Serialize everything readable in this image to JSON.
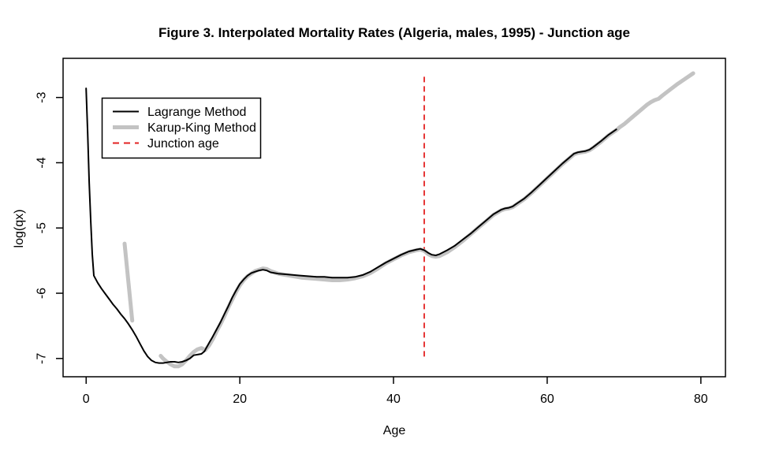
{
  "figure": {
    "title": "Figure 3. Interpolated Mortality Rates (Algeria, males, 1995) - Junction age"
  },
  "chart_data": {
    "type": "line",
    "title": "Figure 3. Interpolated Mortality Rates (Algeria, males, 1995) - Junction age",
    "xlabel": "Age",
    "ylabel": "log(qx)",
    "xlim": [
      -3.0,
      83.2
    ],
    "ylim": [
      -7.28,
      -2.4
    ],
    "x_ticks": [
      0,
      20,
      40,
      60,
      80
    ],
    "y_ticks": [
      -3,
      -4,
      -5,
      -6,
      -7
    ],
    "grid": false,
    "legend_position": "top-left",
    "junction_age": 44,
    "colors": {
      "lagrange": "#000000",
      "karup_king": "#c3c3c3",
      "junction": "#e32222",
      "axis": "#000000",
      "background": "#ffffff"
    },
    "series": [
      {
        "name": "Karup-King Method",
        "type": "line",
        "color": "#c3c3c3",
        "width": 5,
        "segments": [
          [
            [
              5,
              -5.24
            ],
            [
              6,
              -6.42
            ]
          ],
          [
            [
              9.7,
              -6.96
            ],
            [
              10,
              -7.0
            ],
            [
              10.5,
              -7.05
            ],
            [
              11,
              -7.09
            ],
            [
              11.5,
              -7.12
            ],
            [
              12,
              -7.12
            ],
            [
              12.5,
              -7.09
            ],
            [
              13,
              -7.03
            ],
            [
              13.5,
              -6.96
            ],
            [
              14,
              -6.9
            ],
            [
              14.5,
              -6.86
            ],
            [
              15,
              -6.84
            ],
            [
              15.5,
              -6.87
            ],
            [
              16,
              -6.8
            ],
            [
              16.5,
              -6.7
            ],
            [
              17,
              -6.58
            ],
            [
              17.5,
              -6.47
            ],
            [
              18,
              -6.35
            ],
            [
              18.5,
              -6.22
            ],
            [
              19,
              -6.1
            ],
            [
              19.5,
              -5.98
            ],
            [
              20,
              -5.88
            ],
            [
              20.5,
              -5.8
            ],
            [
              21,
              -5.74
            ],
            [
              21.5,
              -5.7
            ],
            [
              22,
              -5.66
            ],
            [
              22.5,
              -5.64
            ],
            [
              23,
              -5.62
            ],
            [
              23.5,
              -5.63
            ],
            [
              24,
              -5.66
            ],
            [
              24.5,
              -5.68
            ],
            [
              25,
              -5.7
            ],
            [
              26,
              -5.72
            ],
            [
              27,
              -5.74
            ],
            [
              28,
              -5.76
            ],
            [
              29,
              -5.77
            ],
            [
              30,
              -5.78
            ],
            [
              31,
              -5.79
            ],
            [
              32,
              -5.8
            ],
            [
              33,
              -5.8
            ],
            [
              34,
              -5.79
            ],
            [
              35,
              -5.77
            ],
            [
              36,
              -5.74
            ],
            [
              37,
              -5.69
            ],
            [
              38,
              -5.62
            ],
            [
              39,
              -5.54
            ],
            [
              40,
              -5.48
            ],
            [
              41,
              -5.42
            ],
            [
              42,
              -5.37
            ],
            [
              43,
              -5.34
            ],
            [
              43.5,
              -5.33
            ],
            [
              44,
              -5.35
            ],
            [
              44.5,
              -5.4
            ],
            [
              45,
              -5.43
            ],
            [
              45.5,
              -5.44
            ],
            [
              46,
              -5.43
            ],
            [
              47,
              -5.37
            ],
            [
              48,
              -5.29
            ],
            [
              49,
              -5.2
            ],
            [
              50,
              -5.1
            ],
            [
              51,
              -5.0
            ],
            [
              52,
              -4.9
            ],
            [
              53,
              -4.8
            ],
            [
              54,
              -4.73
            ],
            [
              54.5,
              -4.71
            ],
            [
              55,
              -4.7
            ],
            [
              55.5,
              -4.68
            ],
            [
              56,
              -4.64
            ],
            [
              57,
              -4.56
            ],
            [
              58,
              -4.46
            ],
            [
              59,
              -4.35
            ],
            [
              60,
              -4.24
            ],
            [
              61,
              -4.13
            ],
            [
              62,
              -4.02
            ],
            [
              63,
              -3.92
            ],
            [
              63.5,
              -3.87
            ],
            [
              64,
              -3.85
            ],
            [
              64.5,
              -3.84
            ],
            [
              65,
              -3.83
            ],
            [
              65.5,
              -3.81
            ],
            [
              66,
              -3.77
            ],
            [
              67,
              -3.68
            ],
            [
              68,
              -3.58
            ],
            [
              69,
              -3.5
            ],
            [
              69.5,
              -3.45
            ],
            [
              70,
              -3.41
            ],
            [
              71,
              -3.31
            ],
            [
              72,
              -3.21
            ],
            [
              73,
              -3.11
            ],
            [
              73.5,
              -3.07
            ],
            [
              74,
              -3.04
            ],
            [
              74.5,
              -3.02
            ],
            [
              75,
              -2.97
            ],
            [
              76,
              -2.88
            ],
            [
              77,
              -2.79
            ],
            [
              78,
              -2.71
            ],
            [
              79,
              -2.63
            ]
          ]
        ]
      },
      {
        "name": "Lagrange Method",
        "type": "line",
        "color": "#000000",
        "width": 2,
        "segments": [
          [
            [
              0,
              -2.86
            ],
            [
              0.2,
              -3.55
            ],
            [
              0.4,
              -4.3
            ],
            [
              0.6,
              -4.9
            ],
            [
              0.8,
              -5.4
            ],
            [
              1,
              -5.73
            ],
            [
              1.5,
              -5.84
            ],
            [
              2,
              -5.93
            ],
            [
              2.5,
              -6.01
            ],
            [
              3,
              -6.09
            ],
            [
              3.5,
              -6.17
            ],
            [
              4,
              -6.24
            ],
            [
              4.5,
              -6.32
            ],
            [
              5,
              -6.39
            ],
            [
              5.5,
              -6.47
            ],
            [
              6,
              -6.56
            ],
            [
              6.5,
              -6.66
            ],
            [
              7,
              -6.77
            ],
            [
              7.5,
              -6.88
            ],
            [
              8,
              -6.97
            ],
            [
              8.5,
              -7.03
            ],
            [
              9,
              -7.06
            ],
            [
              9.5,
              -7.07
            ],
            [
              10,
              -7.07
            ],
            [
              10.5,
              -7.06
            ],
            [
              11,
              -7.05
            ],
            [
              11.5,
              -7.05
            ],
            [
              12,
              -7.06
            ],
            [
              12.5,
              -7.05
            ],
            [
              13,
              -7.03
            ],
            [
              13.5,
              -7.0
            ],
            [
              14,
              -6.95
            ],
            [
              14.5,
              -6.94
            ],
            [
              15,
              -6.93
            ],
            [
              15.4,
              -6.89
            ],
            [
              16,
              -6.76
            ],
            [
              16.5,
              -6.66
            ],
            [
              17,
              -6.55
            ],
            [
              17.5,
              -6.44
            ],
            [
              18,
              -6.32
            ],
            [
              18.5,
              -6.2
            ],
            [
              19,
              -6.07
            ],
            [
              19.5,
              -5.96
            ],
            [
              20,
              -5.86
            ],
            [
              20.5,
              -5.79
            ],
            [
              21,
              -5.73
            ],
            [
              21.5,
              -5.69
            ],
            [
              22,
              -5.67
            ],
            [
              22.5,
              -5.65
            ],
            [
              23,
              -5.64
            ],
            [
              23.5,
              -5.65
            ],
            [
              24,
              -5.68
            ],
            [
              24.5,
              -5.69
            ],
            [
              25,
              -5.7
            ],
            [
              26,
              -5.71
            ],
            [
              27,
              -5.72
            ],
            [
              28,
              -5.73
            ],
            [
              29,
              -5.74
            ],
            [
              30,
              -5.75
            ],
            [
              31,
              -5.75
            ],
            [
              32,
              -5.76
            ],
            [
              33,
              -5.76
            ],
            [
              34,
              -5.76
            ],
            [
              35,
              -5.75
            ],
            [
              36,
              -5.72
            ],
            [
              37,
              -5.67
            ],
            [
              38,
              -5.6
            ],
            [
              39,
              -5.53
            ],
            [
              40,
              -5.47
            ],
            [
              41,
              -5.41
            ],
            [
              42,
              -5.36
            ],
            [
              43,
              -5.33
            ],
            [
              43.5,
              -5.32
            ],
            [
              44,
              -5.34
            ],
            [
              44.5,
              -5.38
            ],
            [
              45,
              -5.41
            ],
            [
              45.5,
              -5.42
            ],
            [
              46,
              -5.4
            ],
            [
              47,
              -5.34
            ],
            [
              48,
              -5.27
            ],
            [
              49,
              -5.18
            ],
            [
              50,
              -5.09
            ],
            [
              51,
              -4.99
            ],
            [
              52,
              -4.89
            ],
            [
              53,
              -4.79
            ],
            [
              54,
              -4.72
            ],
            [
              54.5,
              -4.7
            ],
            [
              55,
              -4.69
            ],
            [
              55.5,
              -4.67
            ],
            [
              56,
              -4.63
            ],
            [
              57,
              -4.55
            ],
            [
              58,
              -4.45
            ],
            [
              59,
              -4.34
            ],
            [
              60,
              -4.23
            ],
            [
              61,
              -4.12
            ],
            [
              62,
              -4.01
            ],
            [
              63,
              -3.91
            ],
            [
              63.5,
              -3.86
            ],
            [
              64,
              -3.84
            ],
            [
              64.5,
              -3.83
            ],
            [
              65,
              -3.82
            ],
            [
              65.5,
              -3.8
            ],
            [
              66,
              -3.76
            ],
            [
              67,
              -3.67
            ],
            [
              68,
              -3.57
            ],
            [
              69,
              -3.49
            ]
          ]
        ]
      },
      {
        "name": "Junction age",
        "type": "vline",
        "color": "#e32222",
        "width": 1.8,
        "dash": "7,5",
        "x": 44,
        "y_extent": [
          -6.97,
          -2.67
        ]
      }
    ],
    "legend": [
      {
        "label": "Lagrange Method",
        "color": "#000000",
        "dash": null,
        "width": 2
      },
      {
        "label": "Karup-King Method",
        "color": "#c3c3c3",
        "dash": null,
        "width": 5
      },
      {
        "label": "Junction age",
        "color": "#e32222",
        "dash": "8,6",
        "width": 2
      }
    ]
  }
}
